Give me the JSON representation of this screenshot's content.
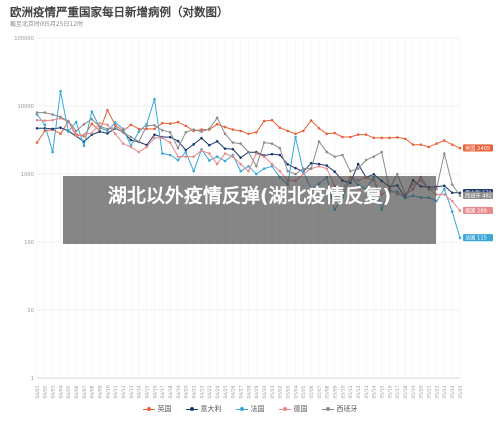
{
  "header": {
    "title": "欧洲疫情严重国家每日新增病例（对数图）",
    "subtitle": "截至北京时间5月25日12时"
  },
  "overlay": {
    "text": "湖北以外疫情反弹(湖北疫情反复)"
  },
  "chart_data": {
    "type": "line",
    "yscale": "log",
    "ylim": [
      1,
      100000
    ],
    "yticks": [
      "1",
      "10",
      "100",
      "1000",
      "10000",
      "100000"
    ],
    "categories": [
      "04/01",
      "04/02",
      "04/03",
      "04/04",
      "04/05",
      "04/06",
      "04/07",
      "04/08",
      "04/09",
      "04/10",
      "04/11",
      "04/12",
      "04/13",
      "04/14",
      "04/15",
      "04/16",
      "04/17",
      "04/18",
      "04/19",
      "04/20",
      "04/21",
      "04/22",
      "04/23",
      "04/24",
      "04/25",
      "04/26",
      "04/27",
      "04/28",
      "04/29",
      "04/30",
      "05/01",
      "05/02",
      "05/03",
      "05/04",
      "05/05",
      "05/06",
      "05/07",
      "05/08",
      "05/09",
      "05/10",
      "05/11",
      "05/12",
      "05/13",
      "05/14",
      "05/15",
      "05/16",
      "05/17",
      "05/18",
      "05/19",
      "05/20",
      "05/21",
      "05/22",
      "05/23",
      "05/24",
      "05/25"
    ],
    "series": [
      {
        "name": "英国",
        "color": "#e8623a",
        "end_label": "英国 2405",
        "values": [
          2900,
          4300,
          4500,
          3900,
          5900,
          3800,
          3600,
          5500,
          4300,
          8700,
          5200,
          4300,
          5300,
          4600,
          4600,
          4600,
          5600,
          5500,
          5800,
          5100,
          4300,
          4500,
          4500,
          5400,
          4900,
          4500,
          4300,
          3900,
          4100,
          6000,
          6200,
          4800,
          4300,
          3900,
          4300,
          6100,
          4700,
          3900,
          4000,
          3500,
          3500,
          3800,
          3800,
          3400,
          3400,
          3400,
          3450,
          3300,
          2700,
          2700,
          2500,
          2800,
          3100,
          2700,
          2400
        ]
      },
      {
        "name": "意大利",
        "color": "#1f3a6e",
        "end_label": "意大利 531",
        "values": [
          4700,
          4700,
          4600,
          4800,
          4300,
          3600,
          3000,
          3800,
          4200,
          3950,
          4700,
          4100,
          3150,
          2970,
          2670,
          3790,
          3490,
          3490,
          3050,
          2250,
          2730,
          3370,
          2650,
          3020,
          2360,
          2320,
          1740,
          2090,
          2090,
          1870,
          1960,
          1900,
          1390,
          1220,
          1080,
          1440,
          1400,
          1330,
          1080,
          800,
          740,
          1400,
          890,
          990,
          790,
          650,
          680,
          450,
          810,
          660,
          640,
          650,
          670,
          530,
          530
        ]
      },
      {
        "name": "法国",
        "color": "#3aa7d8",
        "end_label": "法国 115",
        "values": [
          7500,
          5300,
          2100,
          16500,
          4200,
          5800,
          2600,
          8300,
          4800,
          4300,
          5700,
          4600,
          2600,
          4200,
          5400,
          12600,
          2000,
          1900,
          1600,
          2100,
          1100,
          2300,
          1580,
          1800,
          1550,
          1900,
          1100,
          1300,
          1000,
          1200,
          1300,
          900,
          700,
          3500,
          1100,
          600,
          720,
          900,
          300,
          450,
          900,
          690,
          600,
          900,
          300,
          550,
          550,
          440,
          480,
          450,
          450,
          400,
          600,
          280,
          115
        ]
      },
      {
        "name": "德国",
        "color": "#e88a8a",
        "end_label": "德国 289",
        "values": [
          6200,
          6100,
          6200,
          6600,
          5900,
          3600,
          3800,
          4000,
          5600,
          5300,
          3900,
          2800,
          2500,
          2100,
          2500,
          3400,
          3400,
          2900,
          1800,
          1800,
          1800,
          2200,
          2000,
          1400,
          2000,
          1800,
          1400,
          1100,
          2000,
          1800,
          1400,
          1100,
          800,
          800,
          1000,
          1200,
          1300,
          1200,
          667,
          600,
          900,
          800,
          900,
          800,
          500,
          600,
          500,
          500,
          700,
          800,
          600,
          500,
          500,
          400,
          289
        ]
      },
      {
        "name": "西班牙",
        "color": "#8c8c8c",
        "end_label": "西班牙 482",
        "values": [
          8000,
          8000,
          7500,
          6900,
          6000,
          4300,
          5400,
          6400,
          5000,
          4600,
          4800,
          4100,
          3500,
          3000,
          5100,
          5200,
          4400,
          4100,
          2400,
          4100,
          4500,
          4200,
          4600,
          6700,
          3900,
          2900,
          2800,
          2100,
          1300,
          2900,
          2800,
          2400,
          1100,
          1000,
          1200,
          1200,
          3000,
          2100,
          1800,
          1900,
          1100,
          1200,
          1600,
          1800,
          2100,
          600,
          1000,
          500,
          600,
          900,
          600,
          600,
          2000,
          700,
          482
        ]
      }
    ],
    "legend": "bottom-center",
    "grid": true
  }
}
